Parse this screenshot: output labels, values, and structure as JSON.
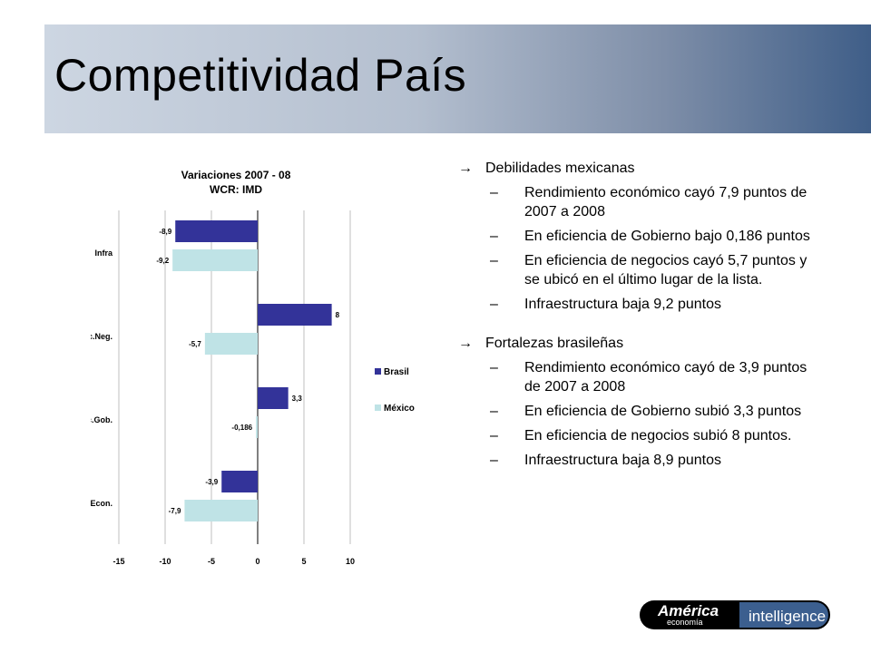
{
  "slide": {
    "title": "Competitividad País"
  },
  "chart_data": {
    "type": "bar",
    "orientation": "horizontal",
    "title": "Variaciones 2007 - 08",
    "subtitle": "WCR: IMD",
    "categories": [
      "Infra",
      "Efic.Neg.",
      "Efic.Gob.",
      "Rend.Econ."
    ],
    "series": [
      {
        "name": "Brasil",
        "color": "#333399",
        "values": [
          -8.9,
          8,
          3.3,
          -3.9
        ],
        "labels": [
          "-8,9",
          "8",
          "3,3",
          "-3,9"
        ]
      },
      {
        "name": "México",
        "color": "#bfe3e6",
        "values": [
          -9.2,
          -5.7,
          -0.186,
          -7.9
        ],
        "labels": [
          "-9,2",
          "-5,7",
          "-0,186",
          "-7,9"
        ]
      }
    ],
    "xlim": [
      -15,
      10
    ],
    "xticks": [
      "-15",
      "-10",
      "-5",
      "0",
      "5",
      "10"
    ],
    "legend_position": "right",
    "grid": true
  },
  "bullets": {
    "section1": {
      "arrow": "→",
      "heading": "Debilidades mexicanas",
      "items": [
        "Rendimiento económico cayó 7,9 puntos de 2007 a 2008",
        "En eficiencia de Gobierno bajo 0,186 puntos",
        "En eficiencia de negocios cayó 5,7 puntos y se ubicó en el último lugar de la lista.",
        "Infraestructura baja 9,2 puntos"
      ]
    },
    "section2": {
      "arrow": "→",
      "heading": "Fortalezas brasileñas",
      "items": [
        "Rendimiento económico cayó de 3,9 puntos de 2007 a 2008",
        "En eficiencia de Gobierno subió 3,3 puntos",
        "En eficiencia de negocios subió 8 puntos.",
        "Infraestructura baja 8,9 puntos"
      ]
    },
    "dash": "–"
  },
  "logo": {
    "word1": "América",
    "word2": "economía",
    "word3": "intelligence"
  }
}
